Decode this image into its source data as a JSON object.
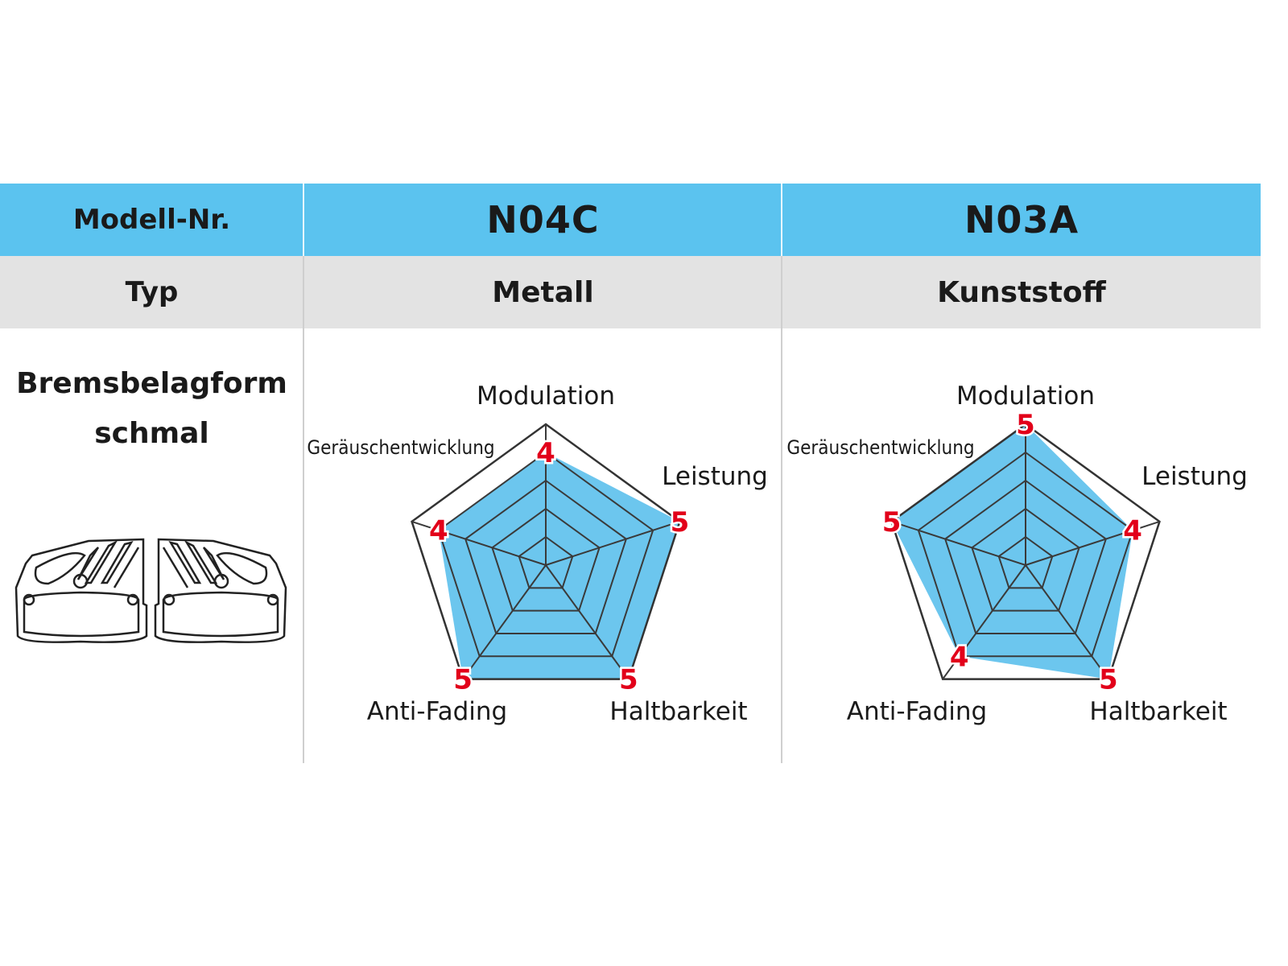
{
  "table": {
    "header": {
      "label": "Modell-Nr.",
      "models": [
        "N04C",
        "N03A"
      ]
    },
    "type_row": {
      "label": "Typ",
      "values": [
        "Metall",
        "Kunststoff"
      ]
    },
    "shape_row": {
      "label_line1": "Bremsbelagform",
      "label_line2": "schmal",
      "image": "brake-pads-outline"
    }
  },
  "colors": {
    "header_bg": "#5bc3ef",
    "type_bg": "#e3e3e3",
    "fill": "#6cc6ee",
    "value_text": "#e2001a"
  },
  "chart_data": [
    {
      "type": "radar",
      "title": "N04C",
      "axes": [
        "Modulation",
        "Leistung",
        "Haltbarkeit",
        "Anti-Fading",
        "Geräuschentwicklung"
      ],
      "values": [
        4,
        5,
        5,
        5,
        4
      ],
      "range": [
        0,
        5
      ],
      "grid_levels": 5
    },
    {
      "type": "radar",
      "title": "N03A",
      "axes": [
        "Modulation",
        "Leistung",
        "Haltbarkeit",
        "Anti-Fading",
        "Geräuschentwicklung"
      ],
      "values": [
        5,
        4,
        5,
        4,
        5
      ],
      "range": [
        0,
        5
      ],
      "grid_levels": 5
    }
  ]
}
